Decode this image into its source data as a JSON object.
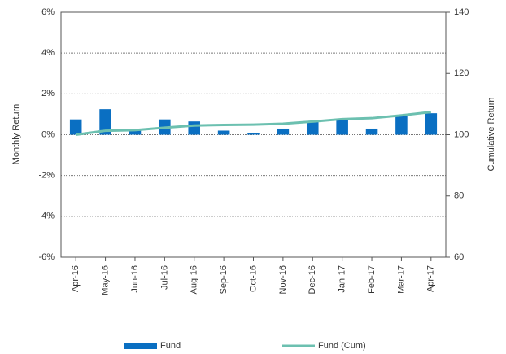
{
  "chart_data": {
    "type": "bar-line",
    "categories": [
      "Apr-16",
      "May-16",
      "Jun-16",
      "Jul-16",
      "Aug-16",
      "Sep-16",
      "Oct-16",
      "Nov-16",
      "Dec-16",
      "Jan-17",
      "Feb-17",
      "Mar-17",
      "Apr-17"
    ],
    "series": [
      {
        "name": "Fund",
        "type": "bar",
        "color": "#0a6fc2",
        "values": [
          0.75,
          1.25,
          0.2,
          0.75,
          0.65,
          0.2,
          0.1,
          0.3,
          0.65,
          0.75,
          0.3,
          0.9,
          1.05
        ]
      },
      {
        "name": "Fund (Cum)",
        "type": "line",
        "axis": "y2",
        "color": "#6cc0b0",
        "values": [
          100,
          101.3,
          101.5,
          102.3,
          103,
          103.2,
          103.3,
          103.6,
          104.3,
          105.1,
          105.4,
          106.3,
          107.4
        ]
      }
    ],
    "ylabel": "Monthly Return",
    "y2label": "Cumulative Return",
    "ylim": [
      -6,
      6
    ],
    "yticks": [
      {
        "value": -6,
        "label": "-6%"
      },
      {
        "value": -4,
        "label": "-4%"
      },
      {
        "value": -2,
        "label": "-2%"
      },
      {
        "value": 0,
        "label": "0%"
      },
      {
        "value": 2,
        "label": "2%"
      },
      {
        "value": 4,
        "label": "4%"
      },
      {
        "value": 6,
        "label": "6%"
      }
    ],
    "y2lim": [
      60,
      140
    ],
    "y2ticks": [
      60,
      80,
      100,
      120,
      140
    ],
    "grid": true,
    "legend": "bottom"
  }
}
